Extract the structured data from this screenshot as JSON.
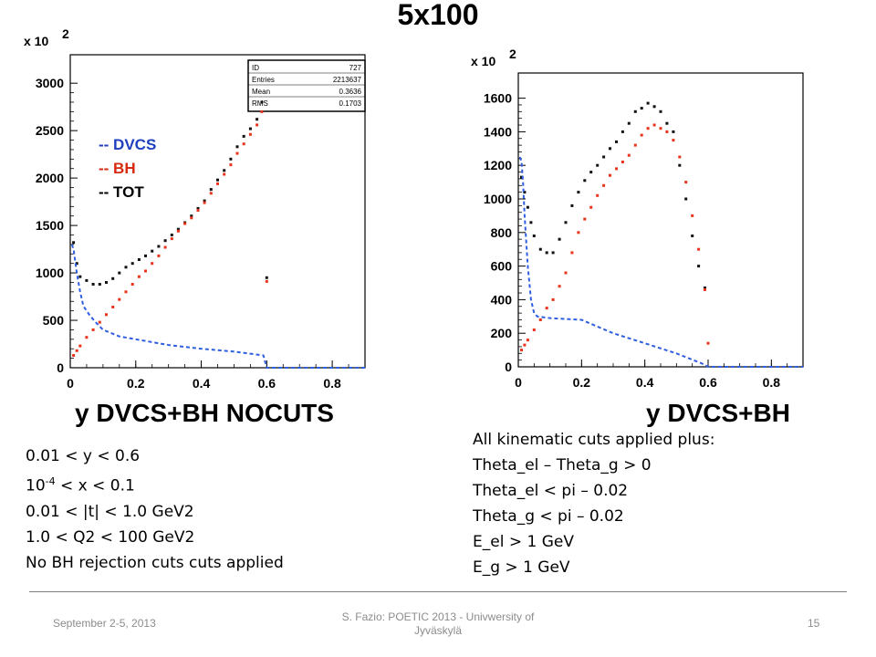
{
  "slide": {
    "title": "5x100",
    "footer": {
      "date": "September 2-5, 2013",
      "center_line1": "S. Fazio: POETIC 2013 - Univwersity of",
      "center_line2": "Jyväskylä",
      "page": "15"
    }
  },
  "legend": {
    "items": [
      {
        "label": "-- DVCS",
        "color": "#1f3fbf"
      },
      {
        "label": "-- BH",
        "color": "#d62a10"
      },
      {
        "label": "-- TOT",
        "color": "#000000"
      }
    ]
  },
  "notes_left": {
    "lines": [
      "0.01 < y < 0.6",
      "< x < 0.1",
      "0.01 < |t| < 1.0 GeV2",
      "1.0 < Q2 < 100 GeV2",
      "No BH rejection cuts cuts applied"
    ],
    "x_prefix_base": "10",
    "x_prefix_exp": "-4"
  },
  "notes_right": {
    "lines": [
      "All kinematic cuts applied plus:",
      "Theta_el – Theta_g > 0",
      "Theta_el < pi – 0.02",
      "Theta_g < pi – 0.02",
      "E_el > 1 GeV",
      "E_g > 1 GeV"
    ]
  },
  "colors": {
    "dvcs": "#2f5fe0",
    "bh": "#e8341c",
    "tot": "#111111",
    "frame": "#000000"
  },
  "chart_data": [
    {
      "type": "scatter",
      "xlabel": "y DVCS+BH NOCUTS",
      "y_multiplier_base": "x 10",
      "y_multiplier_exp": "2",
      "xlim": [
        0,
        0.9
      ],
      "ylim": [
        0,
        3300
      ],
      "x_ticks": [
        0,
        0.2,
        0.4,
        0.6,
        0.8
      ],
      "x_tick_labels": [
        "0",
        "0.2",
        "0.4",
        "0.6",
        "0.8"
      ],
      "y_ticks": [
        0,
        500,
        1000,
        1500,
        2000,
        2500,
        3000
      ],
      "y_tick_labels": [
        "0",
        "500",
        "1000",
        "1500",
        "2000",
        "2500",
        "3000"
      ],
      "stats_box": {
        "rows": [
          {
            "label": "ID",
            "value": "727"
          },
          {
            "label": "Entries",
            "value": "2213637"
          },
          {
            "label": "Mean",
            "value": "0.3636"
          },
          {
            "label": "RMS",
            "value": "0.1703"
          }
        ]
      },
      "series": [
        {
          "key": "tot",
          "style": "points",
          "x": [
            0.01,
            0.02,
            0.03,
            0.05,
            0.07,
            0.09,
            0.11,
            0.13,
            0.15,
            0.17,
            0.19,
            0.21,
            0.23,
            0.25,
            0.27,
            0.29,
            0.31,
            0.33,
            0.35,
            0.37,
            0.39,
            0.41,
            0.43,
            0.45,
            0.47,
            0.49,
            0.51,
            0.53,
            0.55,
            0.57,
            0.585,
            0.6
          ],
          "y": [
            1320,
            1100,
            960,
            920,
            880,
            880,
            900,
            940,
            1000,
            1060,
            1100,
            1140,
            1180,
            1230,
            1280,
            1340,
            1400,
            1460,
            1530,
            1600,
            1680,
            1760,
            1880,
            1980,
            2080,
            2200,
            2330,
            2440,
            2520,
            2620,
            2800,
            950
          ]
        },
        {
          "key": "bh",
          "style": "points",
          "x": [
            0.01,
            0.02,
            0.03,
            0.05,
            0.07,
            0.09,
            0.11,
            0.13,
            0.15,
            0.17,
            0.19,
            0.21,
            0.23,
            0.25,
            0.27,
            0.29,
            0.31,
            0.33,
            0.35,
            0.37,
            0.39,
            0.41,
            0.43,
            0.45,
            0.47,
            0.49,
            0.51,
            0.53,
            0.55,
            0.57,
            0.585,
            0.6
          ],
          "y": [
            130,
            180,
            230,
            320,
            400,
            480,
            560,
            640,
            720,
            800,
            880,
            960,
            1020,
            1100,
            1180,
            1270,
            1360,
            1440,
            1520,
            1580,
            1660,
            1740,
            1840,
            1940,
            2040,
            2140,
            2260,
            2360,
            2460,
            2560,
            2700,
            910
          ]
        },
        {
          "key": "dvcs",
          "style": "dashed",
          "x": [
            0.005,
            0.01,
            0.02,
            0.03,
            0.04,
            0.06,
            0.08,
            0.1,
            0.15,
            0.2,
            0.3,
            0.4,
            0.5,
            0.59,
            0.6,
            0.62,
            0.9
          ],
          "y": [
            1300,
            1250,
            1000,
            800,
            650,
            550,
            470,
            400,
            330,
            300,
            240,
            200,
            170,
            130,
            0,
            0,
            0
          ]
        }
      ]
    },
    {
      "type": "scatter",
      "xlabel": "y DVCS+BH",
      "y_multiplier_base": "x 10",
      "y_multiplier_exp": "2",
      "xlim": [
        0,
        0.9
      ],
      "ylim": [
        0,
        1750
      ],
      "x_ticks": [
        0,
        0.2,
        0.4,
        0.6,
        0.8
      ],
      "x_tick_labels": [
        "0",
        "0.2",
        "0.4",
        "0.6",
        "0.8"
      ],
      "y_ticks": [
        0,
        200,
        400,
        600,
        800,
        1000,
        1200,
        1400,
        1600
      ],
      "y_tick_labels": [
        "0",
        "200",
        "400",
        "600",
        "800",
        "1000",
        "1200",
        "1400",
        "1600"
      ],
      "series": [
        {
          "key": "tot",
          "style": "points",
          "x": [
            0.01,
            0.02,
            0.03,
            0.04,
            0.05,
            0.07,
            0.09,
            0.11,
            0.13,
            0.15,
            0.17,
            0.19,
            0.21,
            0.23,
            0.25,
            0.27,
            0.29,
            0.31,
            0.33,
            0.35,
            0.37,
            0.39,
            0.41,
            0.43,
            0.45,
            0.47,
            0.49,
            0.51,
            0.53,
            0.55,
            0.57,
            0.59
          ],
          "y": [
            1130,
            1040,
            950,
            860,
            780,
            700,
            680,
            680,
            760,
            860,
            960,
            1040,
            1110,
            1160,
            1200,
            1250,
            1300,
            1340,
            1400,
            1450,
            1520,
            1540,
            1570,
            1550,
            1520,
            1450,
            1400,
            1200,
            1000,
            780,
            600,
            470
          ]
        },
        {
          "key": "bh",
          "style": "points",
          "x": [
            0.01,
            0.02,
            0.03,
            0.05,
            0.07,
            0.09,
            0.11,
            0.13,
            0.15,
            0.17,
            0.19,
            0.21,
            0.23,
            0.25,
            0.27,
            0.29,
            0.31,
            0.33,
            0.35,
            0.37,
            0.39,
            0.41,
            0.43,
            0.45,
            0.47,
            0.49,
            0.51,
            0.53,
            0.55,
            0.57,
            0.59,
            0.6
          ],
          "y": [
            100,
            130,
            160,
            220,
            280,
            350,
            400,
            480,
            560,
            680,
            800,
            880,
            950,
            1020,
            1080,
            1140,
            1180,
            1220,
            1260,
            1320,
            1380,
            1420,
            1440,
            1420,
            1400,
            1350,
            1250,
            1100,
            900,
            700,
            460,
            140
          ]
        },
        {
          "key": "dvcs",
          "style": "dashed",
          "x": [
            0.005,
            0.01,
            0.015,
            0.02,
            0.03,
            0.04,
            0.05,
            0.06,
            0.08,
            0.1,
            0.15,
            0.2,
            0.3,
            0.4,
            0.5,
            0.58,
            0.6,
            0.62,
            0.9
          ],
          "y": [
            1250,
            1220,
            1100,
            900,
            600,
            400,
            320,
            300,
            295,
            290,
            285,
            280,
            200,
            140,
            80,
            20,
            0,
            0,
            0
          ]
        }
      ]
    }
  ]
}
